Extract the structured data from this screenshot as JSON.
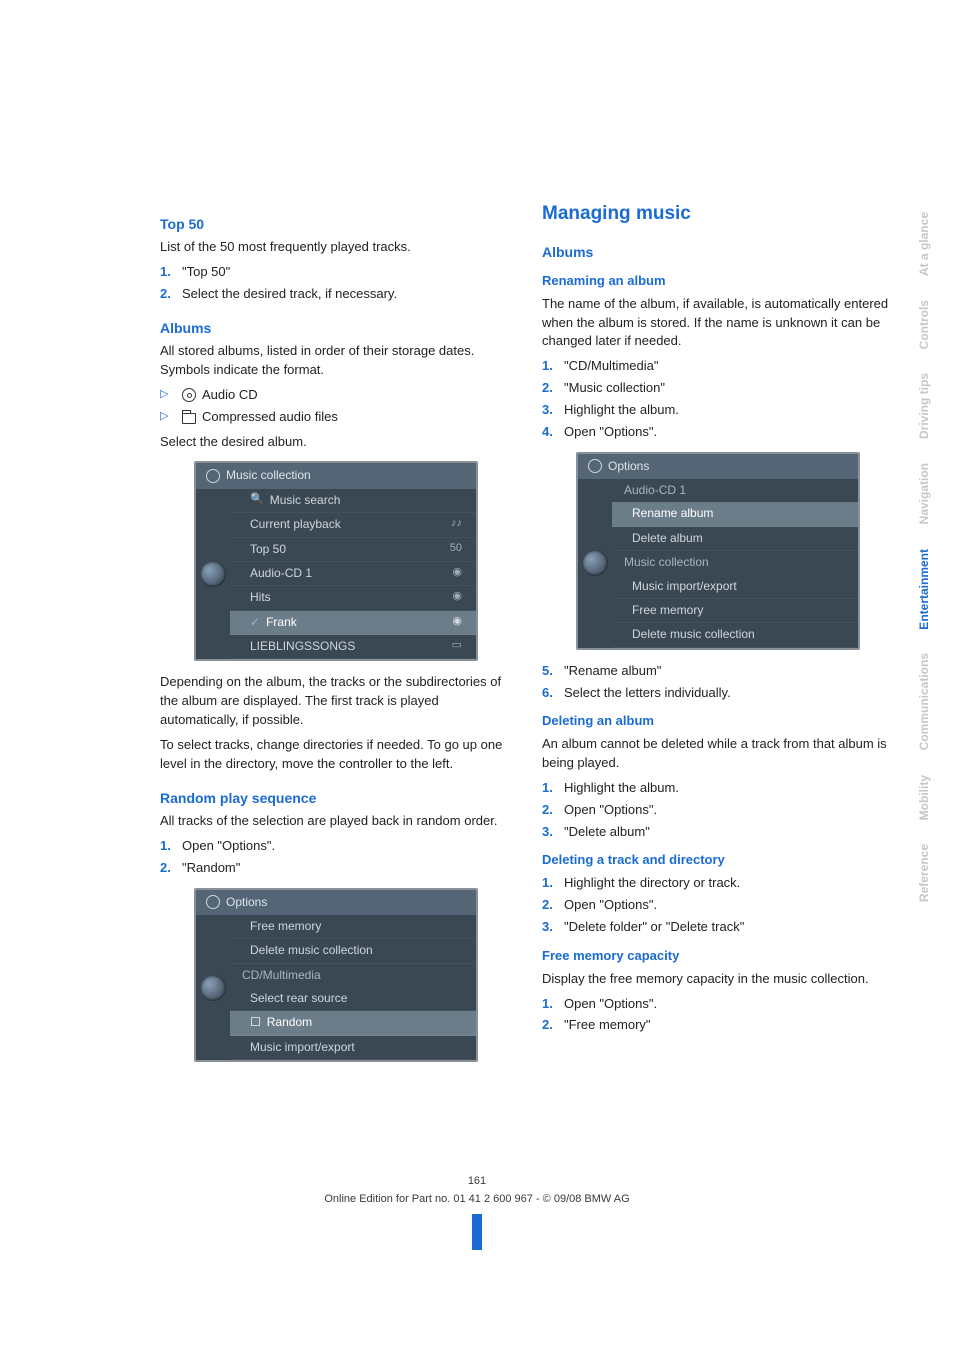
{
  "page_number": "161",
  "footer_line": "Online Edition for Part no. 01 41 2 600 967  - © 09/08 BMW AG",
  "sidebar": {
    "tabs": [
      {
        "label": "At a glance",
        "active": false
      },
      {
        "label": "Controls",
        "active": false
      },
      {
        "label": "Driving tips",
        "active": false
      },
      {
        "label": "Navigation",
        "active": false
      },
      {
        "label": "Entertainment",
        "active": true
      },
      {
        "label": "Communications",
        "active": false
      },
      {
        "label": "Mobility",
        "active": false
      },
      {
        "label": "Reference",
        "active": false
      }
    ]
  },
  "left": {
    "top50": {
      "title": "Top 50",
      "intro": "List of the 50 most frequently played tracks.",
      "steps": [
        "\"Top 50\"",
        "Select the desired track, if necessary."
      ]
    },
    "albums": {
      "title": "Albums",
      "intro": "All stored albums, listed in order of their storage dates. Symbols indicate the format.",
      "bullets": [
        {
          "icon": "disc",
          "label": "Audio CD"
        },
        {
          "icon": "folder",
          "label": "Compressed audio files"
        }
      ],
      "select_line": "Select the desired album.",
      "screenshot": {
        "header": "Music collection",
        "rows": [
          {
            "icon": "search",
            "label": "Music search",
            "right": ""
          },
          {
            "label": "Current playback",
            "right": "♪♪"
          },
          {
            "label": "Top 50",
            "right": "50"
          },
          {
            "label": "Audio-CD 1",
            "right": "◉"
          },
          {
            "label": "Hits",
            "right": "◉"
          },
          {
            "label": "Frank",
            "right": "◉",
            "checked": true,
            "highlight": true
          },
          {
            "label": "LIEBLINGSSONGS",
            "right": "▭"
          }
        ]
      },
      "para1": "Depending on the album, the tracks or the subdirectories of the album are displayed. The first track is played automatically, if possible.",
      "para2": "To select tracks, change directories if needed. To go up one level in the directory, move the controller to the left."
    },
    "random": {
      "title": "Random play sequence",
      "intro": "All tracks of the selection are played back in random order.",
      "steps": [
        "Open \"Options\".",
        "\"Random\""
      ],
      "screenshot": {
        "header": "Options",
        "rows": [
          {
            "label": "Free memory"
          },
          {
            "label": "Delete music collection"
          },
          {
            "group": "CD/Multimedia"
          },
          {
            "label": "Select rear source"
          },
          {
            "label": "Random",
            "checkbox": true,
            "highlight": true
          },
          {
            "label": "Music import/export"
          }
        ]
      }
    }
  },
  "right": {
    "section_title": "Managing music",
    "albums": {
      "title": "Albums",
      "renaming": {
        "title": "Renaming an album",
        "intro": "The name of the album, if available, is automatically entered when the album is stored. If the name is unknown it can be changed later if needed.",
        "steps_a": [
          "\"CD/Multimedia\"",
          "\"Music collection\"",
          "Highlight the album.",
          "Open \"Options\"."
        ],
        "screenshot": {
          "header": "Options",
          "rows": [
            {
              "group": "Audio-CD 1"
            },
            {
              "label": "Rename album",
              "highlight": true
            },
            {
              "label": "Delete album"
            },
            {
              "group": "Music collection"
            },
            {
              "label": "Music import/export"
            },
            {
              "label": "Free memory"
            },
            {
              "label": "Delete music collection"
            }
          ]
        },
        "steps_b": [
          "\"Rename album\"",
          "Select the letters individually."
        ]
      },
      "deleting_album": {
        "title": "Deleting an album",
        "intro": "An album cannot be deleted while a track from that album is being played.",
        "steps": [
          "Highlight the album.",
          "Open \"Options\".",
          "\"Delete album\""
        ]
      },
      "deleting_track": {
        "title": "Deleting a track and directory",
        "steps": [
          "Highlight the directory or track.",
          "Open \"Options\".",
          "\"Delete folder\" or \"Delete track\""
        ]
      },
      "free_memory": {
        "title": "Free memory capacity",
        "intro": "Display the free memory capacity in the music collection.",
        "steps": [
          "Open \"Options\".",
          "\"Free memory\""
        ]
      }
    }
  }
}
